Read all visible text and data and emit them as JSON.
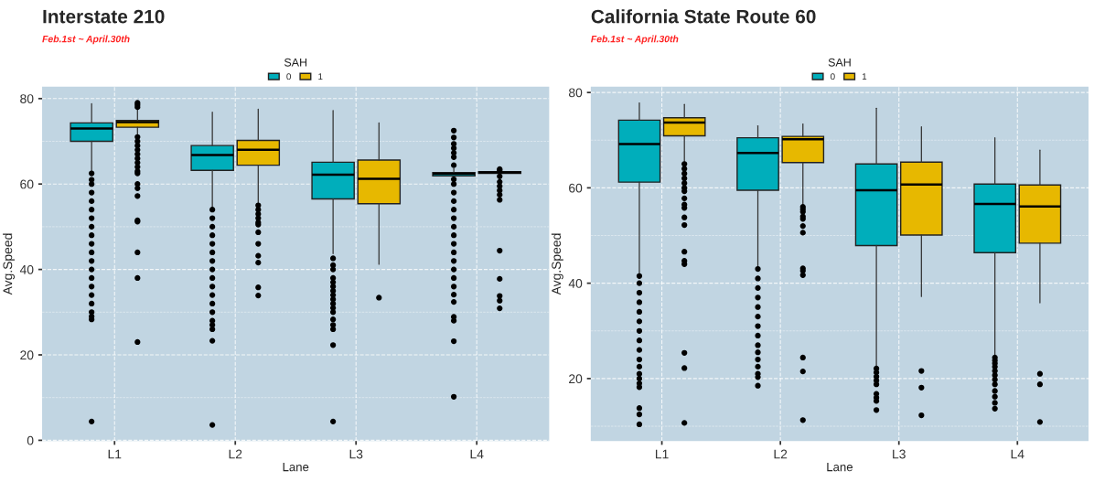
{
  "chart_data": [
    {
      "type": "box",
      "title": "Interstate 210",
      "subtitle": "Feb.1st ~ April.30th",
      "xlabel": "Lane",
      "ylabel": "Avg.Speed",
      "legend_title": "SAH",
      "legend": "top",
      "grid": true,
      "categories": [
        "L1",
        "L2",
        "L3",
        "L4"
      ],
      "ylim": [
        -0.17,
        82.77
      ],
      "yticks": [
        0,
        20,
        40,
        60,
        80
      ],
      "series": [
        {
          "name": "0",
          "color": "#00aebb",
          "boxes": [
            {
              "low": 63.0,
              "q1": 70.0,
              "median": 73.0,
              "q3": 74.3,
              "high": 78.8,
              "outliers": [
                62.5,
                61,
                60,
                58,
                56,
                54,
                52,
                50,
                48,
                46,
                44,
                42,
                40,
                38,
                36,
                34,
                32,
                30,
                29,
                28.3,
                4.4
              ]
            },
            {
              "low": 54.3,
              "q1": 63.2,
              "median": 66.8,
              "q3": 69.0,
              "high": 76.8,
              "outliers": [
                54,
                52,
                50,
                48,
                46,
                44,
                42,
                40,
                38,
                36,
                34,
                32,
                30,
                28,
                27,
                26,
                23.3,
                3.6
              ]
            },
            {
              "low": 43.7,
              "q1": 56.5,
              "median": 62.2,
              "q3": 65.1,
              "high": 77.2,
              "outliers": [
                42.6,
                41,
                40,
                38,
                37,
                36,
                35,
                34,
                33,
                32,
                31,
                30,
                28.3,
                27,
                26,
                22.3,
                4.4
              ]
            },
            {
              "low": 61.2,
              "q1": 61.9,
              "median": 62.4,
              "q3": 62.7,
              "high": 63.6,
              "outliers": [
                72.5,
                70.9,
                69.4,
                68.4,
                67.3,
                66.3,
                64.4,
                61.1,
                60,
                58,
                56,
                54,
                52,
                50,
                48,
                46,
                44,
                42,
                40,
                38,
                36,
                34.1,
                32.4,
                28.9,
                28.0,
                23.2,
                10.2
              ]
            }
          ]
        },
        {
          "name": "1",
          "color": "#e7b800",
          "boxes": [
            {
              "low": 71.3,
              "q1": 73.3,
              "median": 74.5,
              "q3": 74.9,
              "high": 77.3,
              "outliers": [
                79,
                78.5,
                78,
                71,
                70,
                69,
                68,
                67,
                66,
                65,
                64,
                63,
                62.5,
                60,
                59,
                57.2,
                51.5,
                51.2,
                44,
                38,
                23
              ]
            },
            {
              "low": 55.4,
              "q1": 64.4,
              "median": 68.0,
              "q3": 70.2,
              "high": 77.5,
              "outliers": [
                55,
                54,
                53,
                52,
                51,
                50.5,
                48.7,
                46,
                43.2,
                41.6,
                35.8,
                33.9
              ]
            },
            {
              "low": 41.2,
              "q1": 55.4,
              "median": 61.2,
              "q3": 65.6,
              "high": 74.3,
              "outliers": [
                33.4
              ]
            },
            {
              "low": 62.2,
              "q1": 62.5,
              "median": 62.7,
              "q3": 62.9,
              "high": 63.0,
              "outliers": [
                63.5,
                63.2,
                61.8,
                60.5,
                59.5,
                58.5,
                57.5,
                56.3,
                44.4,
                37.8,
                33.8,
                32.7,
                30.9
              ]
            }
          ]
        }
      ]
    },
    {
      "type": "box",
      "title": "California State Route 60",
      "subtitle": "Feb.1st ~ April.30th",
      "xlabel": "Lane",
      "ylabel": "Avg.Speed",
      "legend_title": "SAH",
      "legend": "top",
      "grid": true,
      "categories": [
        "L1",
        "L2",
        "L3",
        "L4"
      ],
      "ylim": [
        6.9,
        81.2
      ],
      "yticks": [
        20,
        40,
        60,
        80
      ],
      "series": [
        {
          "name": "0",
          "color": "#00aebb",
          "boxes": [
            {
              "low": 42.0,
              "q1": 61.2,
              "median": 69.2,
              "q3": 74.2,
              "high": 77.8,
              "outliers": [
                41.5,
                40,
                38,
                36,
                34,
                32,
                30,
                28,
                26,
                24,
                22.5,
                21,
                20,
                19,
                18.2,
                13.8,
                12.5,
                10.4
              ]
            },
            {
              "low": 43.3,
              "q1": 59.5,
              "median": 67.3,
              "q3": 70.5,
              "high": 73.0,
              "outliers": [
                43,
                41,
                39,
                37,
                35,
                33,
                31,
                29,
                27,
                25.5,
                24,
                22.5,
                21,
                20.3,
                18.5
              ]
            },
            {
              "low": 22.5,
              "q1": 47.9,
              "median": 59.5,
              "q3": 65.0,
              "high": 76.7,
              "outliers": [
                22.1,
                21.3,
                20.4,
                19.6,
                18.8,
                16.8,
                16.0,
                15.3,
                13.4
              ]
            },
            {
              "low": 24.7,
              "q1": 46.4,
              "median": 56.6,
              "q3": 60.8,
              "high": 70.5,
              "outliers": [
                24.4,
                23.8,
                23.2,
                22.5,
                21.6,
                20.7,
                19.8,
                18.8,
                17.4,
                16.2,
                14.9,
                13.7
              ]
            }
          ]
        },
        {
          "name": "1",
          "color": "#e7b800",
          "boxes": [
            {
              "low": 65.3,
              "q1": 70.9,
              "median": 73.7,
              "q3": 74.7,
              "high": 77.5,
              "outliers": [
                65,
                64,
                63,
                62,
                61,
                60,
                59.3,
                57.8,
                56.5,
                55.8,
                53.8,
                52.2,
                46.6,
                44.7,
                44.0,
                25.4,
                22.2,
                10.7
              ]
            },
            {
              "low": 56.6,
              "q1": 65.3,
              "median": 70.2,
              "q3": 70.8,
              "high": 73.4,
              "outliers": [
                56,
                55.5,
                55,
                54,
                53.5,
                52,
                50.6,
                43.1,
                42.6,
                41.7,
                24.4,
                21.5,
                11.3
              ]
            },
            {
              "low": 37.2,
              "q1": 50.1,
              "median": 60.7,
              "q3": 65.4,
              "high": 72.8,
              "outliers": [
                21.6,
                18.1,
                12.3
              ]
            },
            {
              "low": 35.9,
              "q1": 48.4,
              "median": 56.1,
              "q3": 60.6,
              "high": 67.9,
              "outliers": [
                21.0,
                18.8,
                10.9
              ]
            }
          ]
        }
      ]
    }
  ]
}
